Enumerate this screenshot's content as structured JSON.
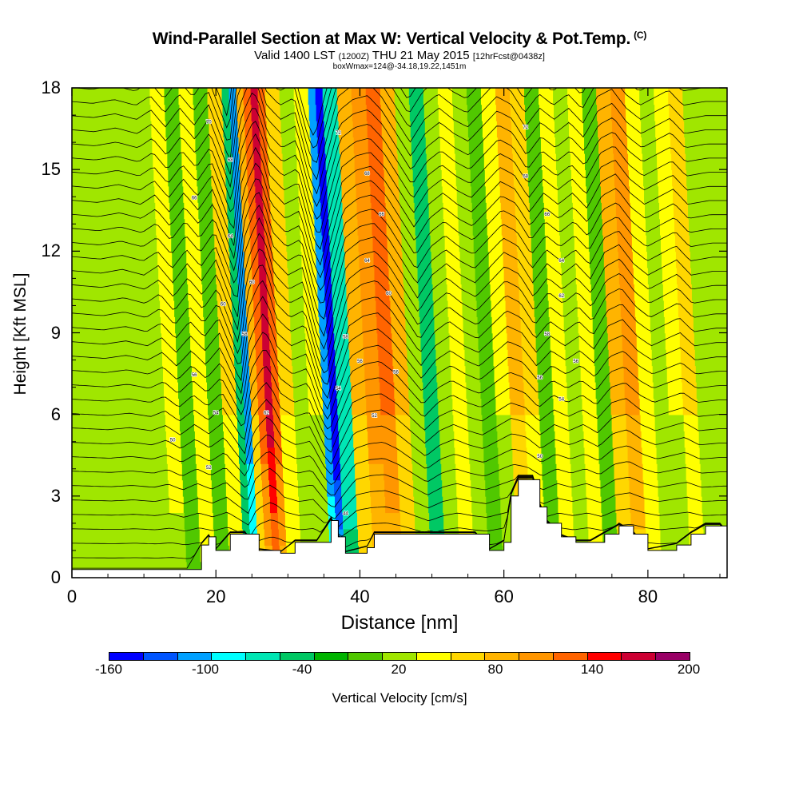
{
  "header": {
    "title": "Wind-Parallel Section at Max W: Vertical Velocity & Pot.Temp.",
    "copyright": "(C)",
    "subtitle_a": "Valid 1400 LST",
    "subtitle_b": "(1200Z)",
    "subtitle_c": "THU 21 May 2015",
    "subtitle_d": "[12hrFcst@0438z]",
    "box_note": "boxWmax=124@-34.18,19.22,1451m"
  },
  "chart_data": {
    "type": "heatmap",
    "title": "Wind-Parallel Section at Max W: Vertical Velocity & Pot.Temp.",
    "xlabel": "Distance [nm]",
    "ylabel": "Height [Kft MSL]",
    "xlim": [
      0,
      91
    ],
    "ylim": [
      0,
      18
    ],
    "xticks": [
      "0",
      "20",
      "40",
      "60",
      "80"
    ],
    "yticks": [
      "0",
      "3",
      "6",
      "9",
      "12",
      "15",
      "18"
    ],
    "colorbar": {
      "label": "Vertical Velocity [cm/s]",
      "tick_labels": [
        "-160",
        "-100",
        "-40",
        "20",
        "80",
        "140",
        "200"
      ],
      "colors": [
        "#0000ff",
        "#0055ff",
        "#00a0ff",
        "#00ffff",
        "#00e6b4",
        "#00c864",
        "#00b400",
        "#50c800",
        "#a0e600",
        "#ffff00",
        "#ffd700",
        "#ffb400",
        "#ff9600",
        "#ff6400",
        "#ff0000",
        "#cc0033",
        "#990066"
      ]
    },
    "w_columns_cm_s": [
      {
        "x": 0,
        "w": 15
      },
      {
        "x": 3,
        "w": 10
      },
      {
        "x": 6,
        "w": 5
      },
      {
        "x": 9,
        "w": 15
      },
      {
        "x": 12,
        "w": 0
      },
      {
        "x": 14,
        "w": 25
      },
      {
        "x": 16,
        "w": -20
      },
      {
        "x": 18,
        "w": 30
      },
      {
        "x": 20,
        "w": -15
      },
      {
        "x": 22,
        "w": 40
      },
      {
        "x": 24,
        "w": -60
      },
      {
        "x": 25,
        "w": -110
      },
      {
        "x": 26,
        "w": 60
      },
      {
        "x": 27,
        "w": 110
      },
      {
        "x": 28,
        "w": 150
      },
      {
        "x": 29,
        "w": 110
      },
      {
        "x": 30,
        "w": 40
      },
      {
        "x": 32,
        "w": 0
      },
      {
        "x": 34,
        "w": 20
      },
      {
        "x": 36,
        "w": -120
      },
      {
        "x": 37,
        "w": -160
      },
      {
        "x": 38,
        "w": -80
      },
      {
        "x": 40,
        "w": 60
      },
      {
        "x": 42,
        "w": 90
      },
      {
        "x": 44,
        "w": 100
      },
      {
        "x": 46,
        "w": 60
      },
      {
        "x": 48,
        "w": 0
      },
      {
        "x": 50,
        "w": -60
      },
      {
        "x": 52,
        "w": 0
      },
      {
        "x": 54,
        "w": 30
      },
      {
        "x": 56,
        "w": 0
      },
      {
        "x": 58,
        "w": -20
      },
      {
        "x": 60,
        "w": 20
      },
      {
        "x": 62,
        "w": 60
      },
      {
        "x": 64,
        "w": 40
      },
      {
        "x": 66,
        "w": -20
      },
      {
        "x": 68,
        "w": 30
      },
      {
        "x": 70,
        "w": 0
      },
      {
        "x": 72,
        "w": 30
      },
      {
        "x": 74,
        "w": -10
      },
      {
        "x": 76,
        "w": 60
      },
      {
        "x": 78,
        "w": 80
      },
      {
        "x": 80,
        "w": 30
      },
      {
        "x": 82,
        "w": 0
      },
      {
        "x": 84,
        "w": 20
      },
      {
        "x": 86,
        "w": 40
      },
      {
        "x": 88,
        "w": 0
      },
      {
        "x": 91,
        "w": 10
      }
    ],
    "terrain_kft": [
      {
        "x": 0,
        "h": 0.3
      },
      {
        "x": 16,
        "h": 0.3
      },
      {
        "x": 18,
        "h": 1.2
      },
      {
        "x": 19,
        "h": 1.5
      },
      {
        "x": 20,
        "h": 1.0
      },
      {
        "x": 22,
        "h": 1.6
      },
      {
        "x": 24,
        "h": 1.6
      },
      {
        "x": 26,
        "h": 1.0
      },
      {
        "x": 29,
        "h": 0.9
      },
      {
        "x": 31,
        "h": 1.3
      },
      {
        "x": 34,
        "h": 1.3
      },
      {
        "x": 36,
        "h": 2.1
      },
      {
        "x": 37,
        "h": 1.5
      },
      {
        "x": 38,
        "h": 0.9
      },
      {
        "x": 41,
        "h": 1.1
      },
      {
        "x": 42,
        "h": 1.6
      },
      {
        "x": 56,
        "h": 1.6
      },
      {
        "x": 58,
        "h": 1.0
      },
      {
        "x": 60,
        "h": 1.3
      },
      {
        "x": 61,
        "h": 3.0
      },
      {
        "x": 62,
        "h": 3.6
      },
      {
        "x": 64,
        "h": 3.6
      },
      {
        "x": 65,
        "h": 2.6
      },
      {
        "x": 66,
        "h": 2.0
      },
      {
        "x": 68,
        "h": 1.5
      },
      {
        "x": 70,
        "h": 1.3
      },
      {
        "x": 72,
        "h": 1.3
      },
      {
        "x": 74,
        "h": 1.6
      },
      {
        "x": 76,
        "h": 1.9
      },
      {
        "x": 78,
        "h": 1.6
      },
      {
        "x": 80,
        "h": 1.0
      },
      {
        "x": 84,
        "h": 1.2
      },
      {
        "x": 86,
        "h": 1.6
      },
      {
        "x": 88,
        "h": 1.9
      },
      {
        "x": 90,
        "h": 1.9
      },
      {
        "x": 91,
        "h": 1.6
      }
    ],
    "isentrope_labels": [
      {
        "x": 14,
        "y": 5.0,
        "text": "50"
      },
      {
        "x": 19,
        "y": 4.0,
        "text": "52"
      },
      {
        "x": 17,
        "y": 7.4,
        "text": "56"
      },
      {
        "x": 20,
        "y": 6.0,
        "text": "54"
      },
      {
        "x": 21,
        "y": 10.0,
        "text": "60"
      },
      {
        "x": 22,
        "y": 12.5,
        "text": "64"
      },
      {
        "x": 17,
        "y": 13.9,
        "text": "66"
      },
      {
        "x": 22,
        "y": 15.3,
        "text": "68"
      },
      {
        "x": 19,
        "y": 16.7,
        "text": "70"
      },
      {
        "x": 24,
        "y": 8.9,
        "text": "58"
      },
      {
        "x": 27,
        "y": 6.0,
        "text": "62"
      },
      {
        "x": 25,
        "y": 10.8,
        "text": "60"
      },
      {
        "x": 37,
        "y": 16.3,
        "text": "72"
      },
      {
        "x": 41,
        "y": 14.8,
        "text": "68"
      },
      {
        "x": 43,
        "y": 13.3,
        "text": "66"
      },
      {
        "x": 41,
        "y": 11.6,
        "text": "64"
      },
      {
        "x": 44,
        "y": 10.4,
        "text": "60"
      },
      {
        "x": 38,
        "y": 8.8,
        "text": "58"
      },
      {
        "x": 40,
        "y": 7.9,
        "text": "56"
      },
      {
        "x": 45,
        "y": 7.5,
        "text": "56"
      },
      {
        "x": 37,
        "y": 6.9,
        "text": "54"
      },
      {
        "x": 42,
        "y": 5.9,
        "text": "52"
      },
      {
        "x": 38,
        "y": 2.3,
        "text": "44"
      },
      {
        "x": 63,
        "y": 16.5,
        "text": "72"
      },
      {
        "x": 63,
        "y": 14.7,
        "text": "68"
      },
      {
        "x": 66,
        "y": 13.3,
        "text": "66"
      },
      {
        "x": 68,
        "y": 11.6,
        "text": "64"
      },
      {
        "x": 68,
        "y": 10.3,
        "text": "62"
      },
      {
        "x": 66,
        "y": 8.9,
        "text": "58"
      },
      {
        "x": 70,
        "y": 7.9,
        "text": "56"
      },
      {
        "x": 65,
        "y": 7.3,
        "text": "56"
      },
      {
        "x": 68,
        "y": 6.5,
        "text": "54"
      },
      {
        "x": 65,
        "y": 4.4,
        "text": "50"
      }
    ]
  }
}
